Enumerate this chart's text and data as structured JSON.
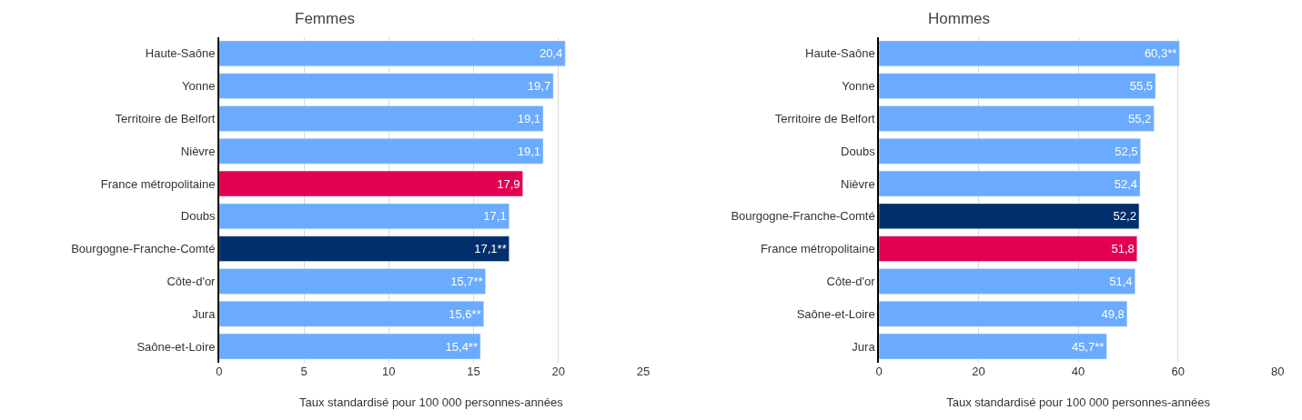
{
  "chart_data": [
    {
      "type": "bar",
      "orientation": "horizontal",
      "title": "Femmes",
      "xlabel": "Taux standardisé pour 100 000 personnes-années",
      "categories": [
        "Haute-Saône",
        "Yonne",
        "Territoire de Belfort",
        "Nièvre",
        "France métropolitaine",
        "Doubs",
        "Bourgogne-Franche-Comté",
        "Côte-d'or",
        "Jura",
        "Saône-et-Loire"
      ],
      "values": [
        20.4,
        19.7,
        19.1,
        19.1,
        17.9,
        17.1,
        17.1,
        15.7,
        15.6,
        15.4
      ],
      "value_labels": [
        "20,4",
        "19,7",
        "19,1",
        "19,1",
        "17,9",
        "17,1",
        "17,1**",
        "15,7**",
        "15,6**",
        "15,4**"
      ],
      "colors": [
        "#6aabff",
        "#6aabff",
        "#6aabff",
        "#6aabff",
        "#e20052",
        "#6aabff",
        "#002f6c",
        "#6aabff",
        "#6aabff",
        "#6aabff"
      ],
      "xlim": [
        0,
        25
      ],
      "xticks": [
        0,
        5,
        10,
        15,
        20,
        25
      ],
      "grid": "x"
    },
    {
      "type": "bar",
      "orientation": "horizontal",
      "title": "Hommes",
      "xlabel": "Taux standardisé pour 100 000 personnes-années",
      "categories": [
        "Haute-Saône",
        "Yonne",
        "Territoire de Belfort",
        "Doubs",
        "Nièvre",
        "Bourgogne-Franche-Comté",
        "France métropolitaine",
        "Côte-d'or",
        "Saône-et-Loire",
        "Jura"
      ],
      "values": [
        60.3,
        55.5,
        55.2,
        52.5,
        52.4,
        52.2,
        51.8,
        51.4,
        49.8,
        45.7
      ],
      "value_labels": [
        "60,3**",
        "55,5",
        "55,2",
        "52,5",
        "52,4",
        "52,2",
        "51,8",
        "51,4",
        "49,8",
        "45,7**"
      ],
      "colors": [
        "#6aabff",
        "#6aabff",
        "#6aabff",
        "#6aabff",
        "#6aabff",
        "#002f6c",
        "#e20052",
        "#6aabff",
        "#6aabff",
        "#6aabff"
      ],
      "xlim": [
        0,
        80
      ],
      "xticks": [
        0,
        20,
        40,
        60,
        80
      ],
      "grid": "x"
    }
  ]
}
